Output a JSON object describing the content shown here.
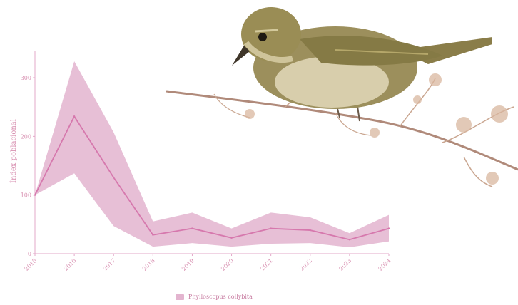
{
  "chart_data": {
    "type": "line",
    "x": [
      2015,
      2016,
      2017,
      2018,
      2019,
      2020,
      2021,
      2022,
      2023,
      2024
    ],
    "series": [
      {
        "name": "Phylloscopus collybita",
        "values": [
          100,
          234,
          130,
          32,
          43,
          27,
          43,
          40,
          24,
          43
        ],
        "lower": [
          100,
          137,
          47,
          12,
          18,
          12,
          17,
          18,
          11,
          21
        ],
        "upper": [
          100,
          328,
          207,
          55,
          70,
          43,
          70,
          62,
          35,
          66
        ]
      }
    ],
    "title": "",
    "xlabel": "",
    "ylabel": "Índex poblacional",
    "yticks": [
      0,
      100,
      200,
      300
    ],
    "xticks": [
      "2015",
      "2016",
      "2017",
      "2018",
      "2019",
      "2020",
      "2021",
      "2022",
      "2023",
      "2024"
    ],
    "ylim": [
      0,
      345
    ],
    "grid": false,
    "legend": "bottom",
    "colors": {
      "line": "#d678ad",
      "band": "#e3b4cf",
      "text": "#d88fb0",
      "axis": "#e3a8c8"
    },
    "background_image": "bird-on-branch"
  }
}
